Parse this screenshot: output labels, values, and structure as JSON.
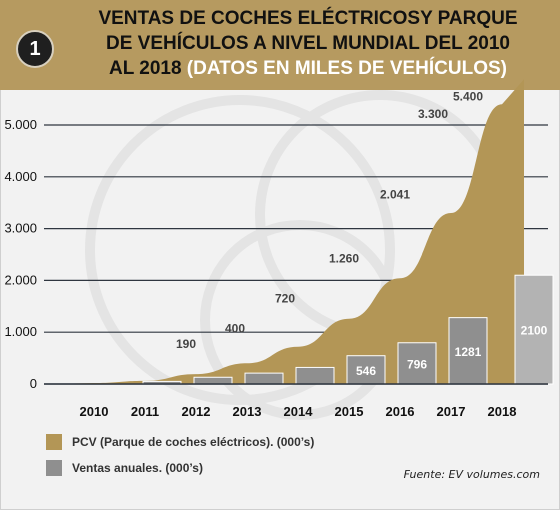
{
  "badge": "1",
  "title": {
    "line1": "VENTAS DE COCHES ELÉCTRICOSY PARQUE",
    "line2": "DE VEHÍCULOS A NIVEL MUNDIAL DEL 2010",
    "line3_main": "AL 2018",
    "line3_sub": "(DATOS EN MILES DE VEHÍCULOS)"
  },
  "source": "Fuente: EV volumes.com",
  "colors": {
    "header": "#b69a60",
    "pcv": "#b39656",
    "sales_dark": "#8f8f8f",
    "sales_light": "#b3b3b3",
    "grid": "#2f3640"
  },
  "legend": {
    "pcv_label": "PCV (Parque de coches eléctricos). (000’s)",
    "sales_label": "Ventas anuales. (000’s)"
  },
  "chart_data": {
    "type": "bar",
    "categories": [
      "2010",
      "2011",
      "2012",
      "2013",
      "2014",
      "2015",
      "2016",
      "2017",
      "2018"
    ],
    "series": [
      {
        "name": "PCV (Parque de coches eléctricos). (000’s)",
        "type": "area",
        "values": [
          20,
          60,
          190,
          400,
          720,
          1260,
          2041,
          3300,
          5400
        ],
        "labels": [
          "",
          "",
          "190",
          "400",
          "720",
          "1.260",
          "2.041",
          "3.300",
          "5.400"
        ]
      },
      {
        "name": "Ventas anuales. (000’s)",
        "type": "bar",
        "values": [
          null,
          50,
          130,
          210,
          320,
          546,
          796,
          1281,
          2100
        ],
        "labels": [
          "",
          "",
          "",
          "",
          "",
          "546",
          "796",
          "1281",
          "2100"
        ]
      }
    ],
    "yticks": [
      "0",
      "1.000",
      "2.000",
      "3.000",
      "4.000",
      "5.000"
    ],
    "ylim": [
      0,
      5400
    ],
    "grid": true,
    "legend_position": "bottom-left"
  }
}
